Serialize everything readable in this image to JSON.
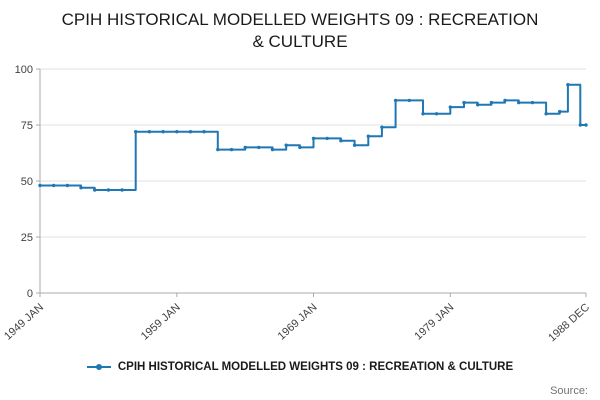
{
  "title": {
    "line1": "CPIH HISTORICAL MODELLED WEIGHTS 09 : RECREATION",
    "line2": "& CULTURE"
  },
  "legend": {
    "label": "CPIH HISTORICAL MODELLED WEIGHTS 09 : RECREATION & CULTURE"
  },
  "source": {
    "label": "Source:"
  },
  "chart_data": {
    "type": "line",
    "step": true,
    "title": "CPIH HISTORICAL MODELLED WEIGHTS 09 : RECREATION & CULTURE",
    "xlabel": "",
    "ylabel": "",
    "xlim": [
      1949.0,
      1988.92
    ],
    "ylim": [
      0,
      100
    ],
    "y_ticks": [
      0,
      25,
      50,
      75,
      100
    ],
    "x_ticks": [
      {
        "x": 1949.0,
        "label": "1949 JAN"
      },
      {
        "x": 1959.0,
        "label": "1959 JAN"
      },
      {
        "x": 1969.0,
        "label": "1969 JAN"
      },
      {
        "x": 1979.0,
        "label": "1979 JAN"
      },
      {
        "x": 1988.92,
        "label": "1988 DEC"
      }
    ],
    "grid": "horizontal",
    "legend_position": "bottom",
    "line_color": "#1f77b4",
    "series": [
      {
        "name": "CPIH HISTORICAL MODELLED WEIGHTS 09 : RECREATION & CULTURE",
        "points": [
          [
            1949,
            48
          ],
          [
            1950,
            48
          ],
          [
            1951,
            48
          ],
          [
            1952,
            47
          ],
          [
            1953,
            46
          ],
          [
            1954,
            46
          ],
          [
            1955,
            46
          ],
          [
            1956,
            72
          ],
          [
            1957,
            72
          ],
          [
            1958,
            72
          ],
          [
            1959,
            72
          ],
          [
            1960,
            72
          ],
          [
            1961,
            72
          ],
          [
            1962,
            64
          ],
          [
            1963,
            64
          ],
          [
            1964,
            65
          ],
          [
            1965,
            65
          ],
          [
            1966,
            64
          ],
          [
            1967,
            66
          ],
          [
            1968,
            65
          ],
          [
            1969,
            69
          ],
          [
            1970,
            69
          ],
          [
            1971,
            68
          ],
          [
            1972,
            66
          ],
          [
            1973,
            70
          ],
          [
            1974,
            74
          ],
          [
            1975,
            86
          ],
          [
            1976,
            86
          ],
          [
            1977,
            80
          ],
          [
            1978,
            80
          ],
          [
            1979,
            83
          ],
          [
            1980,
            85
          ],
          [
            1981,
            84
          ],
          [
            1982,
            85
          ],
          [
            1983,
            86
          ],
          [
            1984,
            85
          ],
          [
            1985,
            85
          ],
          [
            1986,
            80
          ],
          [
            1987,
            81
          ],
          [
            1987.6,
            93
          ],
          [
            1988.5,
            75
          ],
          [
            1988.92,
            75
          ]
        ]
      }
    ]
  }
}
